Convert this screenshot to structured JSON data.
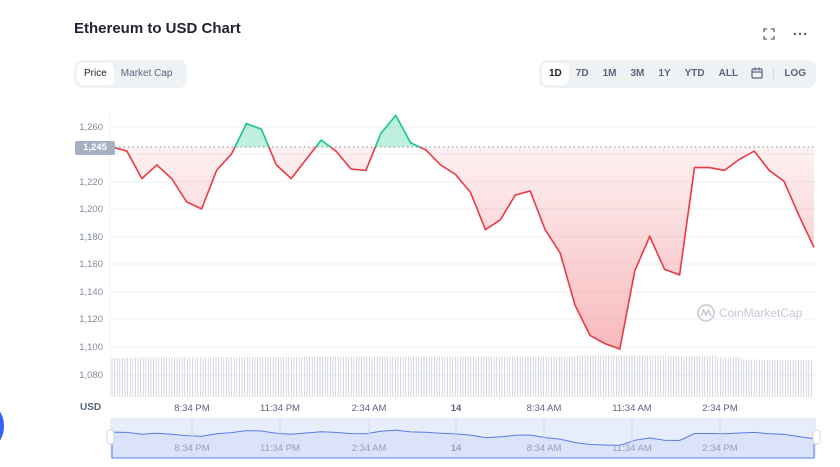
{
  "header": {
    "title": "Ethereum to USD Chart",
    "fullscreen_icon": "fullscreen-icon",
    "more_icon": "more-dots-icon"
  },
  "metric_toggle": {
    "options": [
      "Price",
      "Market Cap"
    ],
    "selected": "Price"
  },
  "range_toggle": {
    "options": [
      "1D",
      "7D",
      "1M",
      "3M",
      "1Y",
      "YTD",
      "ALL"
    ],
    "selected": "1D",
    "calendar_icon": "calendar-icon",
    "log_label": "LOG"
  },
  "current_price_badge": "1,245",
  "currency_label": "USD",
  "watermark": "CoinMarketCap",
  "colors": {
    "up": "#16c784",
    "down": "#ea3943",
    "grid": "#eff2f5",
    "navigator_line": "#3861fb",
    "navigator_fill": "#dde4fb"
  },
  "chart_data": {
    "type": "line",
    "title": "Ethereum to USD Chart",
    "xlabel": "",
    "ylabel": "USD",
    "ylim": [
      1065,
      1275
    ],
    "y_ticks": [
      1080,
      1100,
      1120,
      1140,
      1160,
      1180,
      1200,
      1220,
      1240,
      1260
    ],
    "y_tick_labels": [
      "1,080",
      "1,100",
      "1,120",
      "1,140",
      "1,160",
      "1,180",
      "1,200",
      "1,220",
      "1,240",
      "1,260"
    ],
    "x_tick_labels": [
      "8:34 PM",
      "11:34 PM",
      "2:34 AM",
      "14",
      "8:34 AM",
      "11:34 AM",
      "2:34 PM"
    ],
    "baseline": 1245,
    "grid": true,
    "legend": "none",
    "series": [
      {
        "name": "ETH Price (USD)",
        "x": [
          "5:34 PM",
          "6:04 PM",
          "6:34 PM",
          "7:04 PM",
          "7:34 PM",
          "8:04 PM",
          "8:34 PM",
          "9:04 PM",
          "9:34 PM",
          "10:04 PM",
          "10:34 PM",
          "11:04 PM",
          "11:34 PM",
          "12:04 AM",
          "12:34 AM",
          "1:04 AM",
          "1:34 AM",
          "2:04 AM",
          "2:34 AM",
          "3:04 AM",
          "3:34 AM",
          "4:04 AM",
          "4:34 AM",
          "5:04 AM",
          "5:34 AM",
          "6:04 AM",
          "6:34 AM",
          "7:04 AM",
          "7:34 AM",
          "8:04 AM",
          "8:34 AM",
          "9:04 AM",
          "9:34 AM",
          "10:04 AM",
          "10:34 AM",
          "11:04 AM",
          "11:34 AM",
          "12:04 PM",
          "12:34 PM",
          "1:04 PM",
          "1:34 PM",
          "2:04 PM",
          "2:34 PM",
          "3:04 PM",
          "3:34 PM",
          "4:04 PM",
          "4:34 PM",
          "5:04 PM"
        ],
        "values": [
          1245,
          1242,
          1222,
          1232,
          1222,
          1205,
          1200,
          1228,
          1240,
          1262,
          1258,
          1232,
          1222,
          1236,
          1250,
          1242,
          1229,
          1228,
          1255,
          1268,
          1248,
          1243,
          1232,
          1225,
          1212,
          1185,
          1192,
          1210,
          1213,
          1185,
          1168,
          1130,
          1108,
          1102,
          1098,
          1155,
          1180,
          1156,
          1152,
          1230,
          1230,
          1228,
          1236,
          1242,
          1228,
          1220,
          1195,
          1172
        ]
      }
    ],
    "volume_bars": "uniform light-gray bars along bottom, slightly taller around 11:34 AM",
    "navigator": {
      "x_tick_labels": [
        "8:34 PM",
        "11:34 PM",
        "2:34 AM",
        "14",
        "8:34 AM",
        "11:34 AM",
        "2:34 PM"
      ]
    }
  }
}
